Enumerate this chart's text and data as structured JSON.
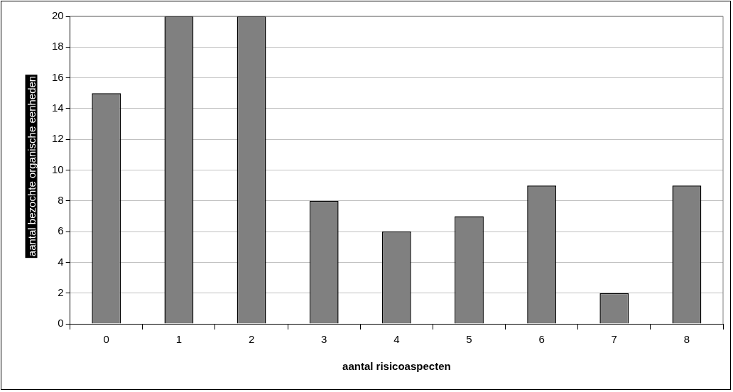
{
  "chart_data": {
    "type": "bar",
    "xlabel": "aantal risicoaspecten",
    "ylabel": "aantal bezochte organische eenheden",
    "categories": [
      "0",
      "1",
      "2",
      "3",
      "4",
      "5",
      "6",
      "7",
      "8"
    ],
    "values": [
      15,
      20,
      20,
      8,
      6,
      7,
      9,
      2,
      9
    ],
    "color": "#808080",
    "ylim": [
      0,
      20
    ],
    "yticks": [
      0,
      2,
      4,
      6,
      8,
      10,
      12,
      14,
      16,
      18,
      20
    ],
    "grid": "y",
    "legend": false
  }
}
